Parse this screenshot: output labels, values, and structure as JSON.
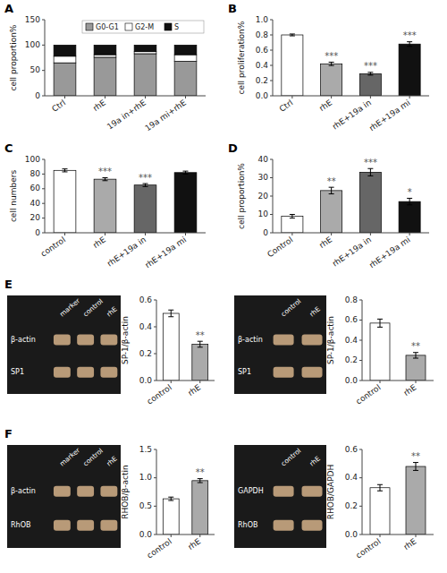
{
  "chart_data": [
    {
      "type": "bar",
      "title": "A",
      "stacked": true,
      "legend": "upper right",
      "categories": [
        "Ctrl",
        "rhE",
        "19a in+rhE",
        "19a mi+rhE"
      ],
      "series": [
        {
          "name": "G0-G1",
          "color": "#999999",
          "values": [
            65,
            76,
            83,
            68
          ]
        },
        {
          "name": "G2-M",
          "color": "#ffffff",
          "values": [
            13,
            5,
            4,
            13
          ]
        },
        {
          "name": "S",
          "color": "#111111",
          "values": [
            22,
            19,
            13,
            19
          ]
        }
      ],
      "ylabel": "cell proportion%",
      "ylim": [
        0,
        150
      ],
      "yticks": [
        0,
        50,
        100,
        150
      ]
    },
    {
      "type": "bar",
      "title": "B",
      "categories": [
        "Ctrl",
        "rhE",
        "rhE+19a in",
        "rhE+19a mi"
      ],
      "values": [
        0.8,
        0.42,
        0.29,
        0.68
      ],
      "errors": [
        0.012,
        0.022,
        0.018,
        0.03
      ],
      "colors": [
        "#ffffff",
        "#aaaaaa",
        "#666666",
        "#111111"
      ],
      "annotations": [
        {
          "text": "***",
          "category": "rhE"
        },
        {
          "text": "***",
          "category": "rhE+19a in"
        },
        {
          "text": "***",
          "category": "rhE+19a mi"
        }
      ],
      "ylabel": "cell proliferation%",
      "ylim": [
        0.0,
        1.0
      ],
      "yticks": [
        {
          "value": 0,
          "label": "0.0"
        },
        0.2,
        0.4,
        0.6,
        0.8,
        {
          "value": 1,
          "label": "1.0"
        }
      ]
    },
    {
      "type": "bar",
      "title": "C",
      "categories": [
        "control",
        "rhE",
        "rhE+19a in",
        "rhE+19a mi"
      ],
      "values": [
        85,
        73,
        65,
        82
      ],
      "errors": [
        2.0,
        2.0,
        2.0,
        2.0
      ],
      "colors": [
        "#ffffff",
        "#aaaaaa",
        "#666666",
        "#111111"
      ],
      "annotations": [
        {
          "text": "***",
          "category": "rhE"
        },
        {
          "text": "***",
          "category": "rhE+19a in"
        }
      ],
      "ylabel": "cell numbers",
      "ylim": [
        0,
        100
      ],
      "yticks": [
        0,
        20,
        40,
        60,
        80,
        100
      ]
    },
    {
      "type": "bar",
      "title": "D",
      "categories": [
        "Control",
        "rhE",
        "rhE+19a in",
        "rhE+19a mi"
      ],
      "values": [
        9,
        23,
        33,
        17
      ],
      "errors": [
        1.0,
        1.8,
        2.0,
        1.8
      ],
      "colors": [
        "#ffffff",
        "#aaaaaa",
        "#666666",
        "#111111"
      ],
      "annotations": [
        {
          "text": "**",
          "category": "rhE"
        },
        {
          "text": "***",
          "category": "rhE+19a in"
        },
        {
          "text": "*",
          "category": "rhE+19a mi"
        }
      ],
      "ylabel": "cell proportion%",
      "ylim": [
        0,
        40
      ],
      "yticks": [
        0,
        10,
        20,
        30,
        40
      ]
    },
    {
      "type": "gel",
      "title": "E",
      "categories": [
        "marker",
        "control",
        "rhE"
      ],
      "annotations": [
        "β-actin",
        "SP1"
      ]
    },
    {
      "type": "bar",
      "categories": [
        "control",
        "rhE"
      ],
      "values": [
        0.5,
        0.27
      ],
      "errors": [
        0.025,
        0.022
      ],
      "colors": [
        "#ffffff",
        "#aaaaaa"
      ],
      "annotations": [
        {
          "text": "**",
          "category": "rhE"
        }
      ],
      "ylabel": "SP-1/β-actin",
      "ylim": [
        0,
        0.6
      ],
      "yticks": [
        {
          "value": 0,
          "label": "0.0"
        },
        0.2,
        0.4,
        0.6
      ]
    },
    {
      "type": "gel",
      "categories": [
        "control",
        "rhE"
      ],
      "annotations": [
        "β-actin",
        "SP1"
      ]
    },
    {
      "type": "bar",
      "categories": [
        "control",
        "rhE"
      ],
      "values": [
        0.57,
        0.25
      ],
      "errors": [
        0.04,
        0.028
      ],
      "colors": [
        "#ffffff",
        "#aaaaaa"
      ],
      "annotations": [
        {
          "text": "**",
          "category": "rhE"
        }
      ],
      "ylabel": "SP-1/β-actin",
      "ylim": [
        0,
        0.8
      ],
      "yticks": [
        {
          "value": 0,
          "label": "0.0"
        },
        0.2,
        0.4,
        0.6,
        0.8
      ]
    },
    {
      "type": "gel",
      "title": "F",
      "categories": [
        "marker",
        "control",
        "rhE"
      ],
      "annotations": [
        "β-actin",
        "RhOB"
      ]
    },
    {
      "type": "bar",
      "categories": [
        "control",
        "rhE"
      ],
      "values": [
        0.63,
        0.95
      ],
      "errors": [
        0.03,
        0.035
      ],
      "colors": [
        "#ffffff",
        "#aaaaaa"
      ],
      "annotations": [
        {
          "text": "**",
          "category": "rhE"
        }
      ],
      "ylabel": "RHOB/β-actin",
      "ylim": [
        0,
        1.5
      ],
      "yticks": [
        {
          "value": 0,
          "label": "0.0"
        },
        0.5,
        {
          "value": 1,
          "label": "1.0"
        },
        1.5
      ]
    },
    {
      "type": "gel",
      "categories": [
        "control",
        "rhE"
      ],
      "annotations": [
        "GAPDH",
        "RhOB"
      ]
    },
    {
      "type": "bar",
      "categories": [
        "control",
        "rhE"
      ],
      "values": [
        0.33,
        0.48
      ],
      "errors": [
        0.022,
        0.028
      ],
      "colors": [
        "#ffffff",
        "#aaaaaa"
      ],
      "annotations": [
        {
          "text": "**",
          "category": "rhE"
        }
      ],
      "ylabel": "RHOB/GAPDH",
      "ylim": [
        0,
        0.6
      ],
      "yticks": [
        {
          "value": 0,
          "label": "0.0"
        },
        0.2,
        0.4,
        0.6
      ]
    }
  ]
}
